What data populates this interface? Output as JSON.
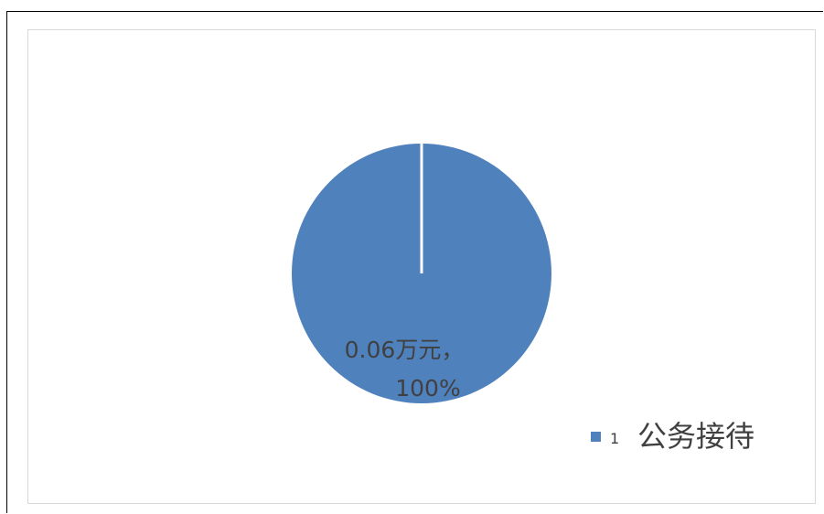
{
  "chart_data": {
    "type": "pie",
    "slices": [
      {
        "label": "1 公务接待",
        "value": 0.06,
        "percent": 100,
        "color": "#4f81bd",
        "data_label_value": "0.06万元，",
        "data_label_percent": "100%"
      }
    ],
    "legend": {
      "placement": "bottom-right",
      "marker": "1",
      "text": "公务接待"
    }
  }
}
